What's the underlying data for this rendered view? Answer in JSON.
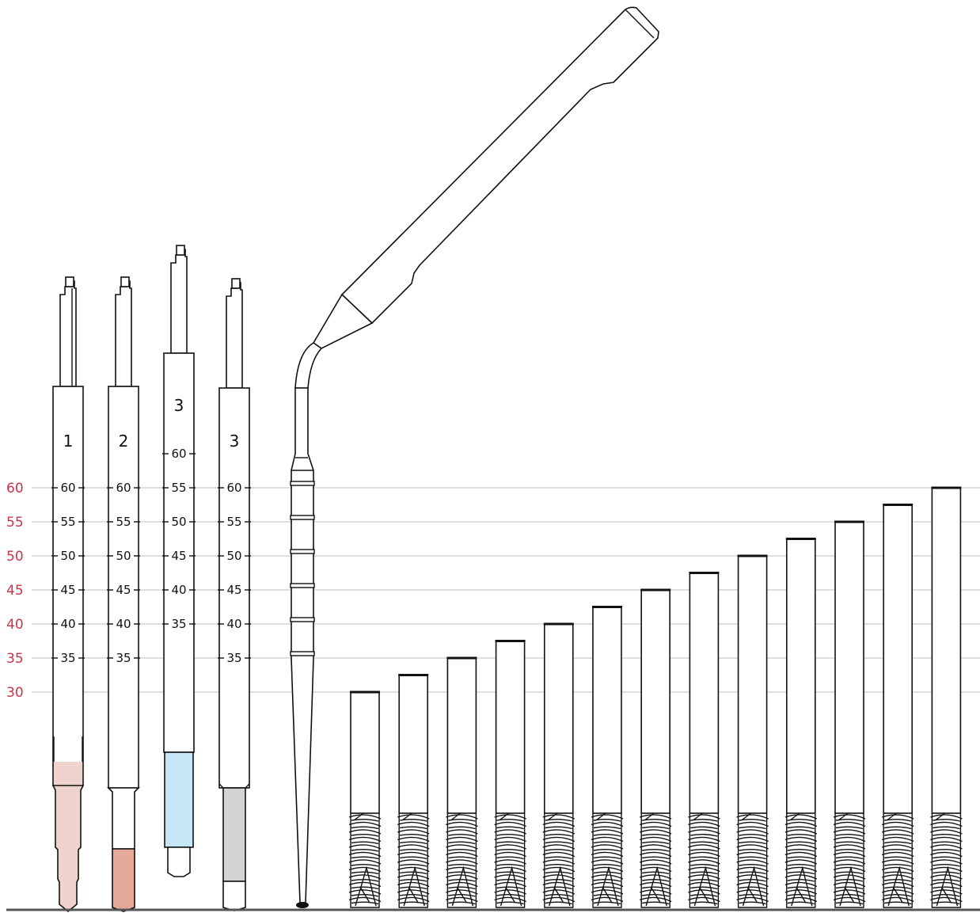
{
  "colors": {
    "scale_label": "#c8354a",
    "gridline": "#bdbdbd",
    "baseline": "#555555",
    "outline": "#111111",
    "drill_1_tip": "#f0d3cd",
    "drill_2_tip": "#e5a99a",
    "drill_3_tip_blue": "#c5e6f5",
    "drill_3_tip_gray": "#d4d4d4"
  },
  "scale": {
    "labels": [
      "60",
      "55",
      "50",
      "45",
      "40",
      "35",
      "30"
    ]
  },
  "depth_drills": [
    {
      "number": "1",
      "marks": [
        "60",
        "55",
        "50",
        "45",
        "40",
        "35"
      ],
      "tip_color": "drill_1_tip"
    },
    {
      "number": "2",
      "marks": [
        "60",
        "55",
        "50",
        "45",
        "40",
        "35"
      ],
      "tip_color": "drill_2_tip"
    },
    {
      "number": "3",
      "marks": [
        "60",
        "55",
        "50",
        "45",
        "40",
        "35"
      ],
      "tip_color": "drill_3_tip_blue"
    },
    {
      "number": "3",
      "marks": [
        "60",
        "55",
        "50",
        "45",
        "40",
        "35"
      ],
      "tip_color": "drill_3_tip_gray"
    }
  ],
  "depth_probe": {
    "icon": "angled-depth-gauge-icon",
    "band_count": 6
  },
  "implants": {
    "icon": "zygomatic-implant-icon",
    "lengths": [
      30,
      32.5,
      35,
      37.5,
      40,
      42.5,
      45,
      47.5,
      50,
      52.5,
      55,
      57.5,
      60
    ]
  }
}
